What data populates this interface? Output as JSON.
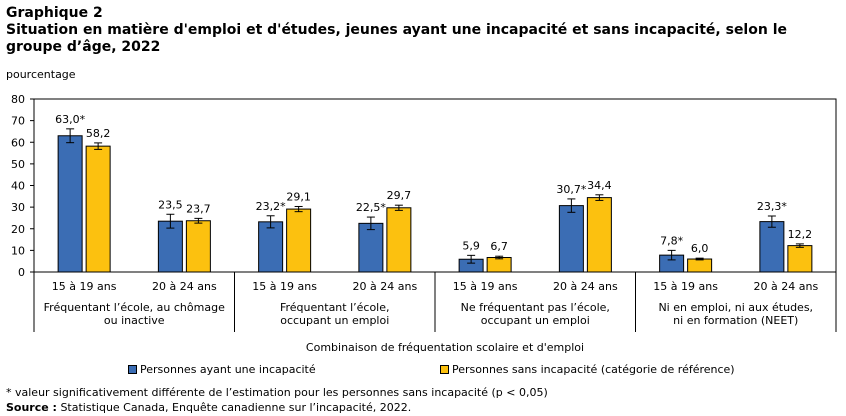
{
  "header": {
    "graph_label": "Graphique 2",
    "title": "Situation en matière d'emploi et d'études, jeunes ayant une incapacité et sans incapacité, selon le groupe d’âge, 2022"
  },
  "chart_data": {
    "type": "bar",
    "ylabel": "pourcentage",
    "xlabel": "Combinaison de fréquentation scolaire et d'emploi",
    "ylim": [
      0,
      80
    ],
    "yticks": [
      0,
      10,
      20,
      30,
      40,
      50,
      60,
      70,
      80
    ],
    "groups": [
      "Fréquentant l’école, au chômage ou inactive",
      "Fréquentant l’école, occupant un emploi",
      "Ne fréquentant pas l’école, occupant un emploi",
      "Ni en emploi, ni aux études, ni en formation (NEET)"
    ],
    "categories": [
      "15 à 19 ans",
      "20 à 24 ans",
      "15 à 19 ans",
      "20 à 24 ans",
      "15 à 19 ans",
      "20 à 24 ans",
      "15 à 19 ans",
      "20 à 24 ans"
    ],
    "series": [
      {
        "name": "Personnes ayant une incapacité",
        "color": "#3b6db4",
        "values": [
          63.0,
          23.5,
          23.2,
          22.5,
          5.9,
          30.7,
          7.8,
          23.3
        ],
        "labels": [
          "63,0*",
          "23,5",
          "23,2*",
          "22,5*",
          "5,9",
          "30,7*",
          "7,8*",
          "23,3*"
        ],
        "err_low": [
          59.8,
          20.3,
          20.4,
          19.6,
          4.1,
          27.6,
          5.6,
          20.7
        ],
        "err_high": [
          66.2,
          26.7,
          26.0,
          25.4,
          7.7,
          33.8,
          10.0,
          25.9
        ]
      },
      {
        "name": "Personnes sans incapacité (catégorie de référence)",
        "color": "#fcc10f",
        "values": [
          58.2,
          23.7,
          29.1,
          29.7,
          6.7,
          34.4,
          6.0,
          12.2
        ],
        "labels": [
          "58,2",
          "23,7",
          "29,1",
          "29,7",
          "6,7",
          "34,4",
          "6,0",
          "12,2"
        ],
        "err_low": [
          56.7,
          22.6,
          27.9,
          28.5,
          6.1,
          33.1,
          5.6,
          11.4
        ],
        "err_high": [
          59.7,
          24.8,
          30.3,
          30.9,
          7.3,
          35.7,
          6.4,
          13.0
        ]
      }
    ],
    "legend_position": "bottom"
  },
  "footnotes": {
    "note": "* valeur significativement différente de l’estimation pour les personnes sans incapacité (p < 0,05)",
    "source_label": "Source :",
    "source_text": " Statistique Canada, Enquête canadienne sur l’incapacité, 2022."
  }
}
